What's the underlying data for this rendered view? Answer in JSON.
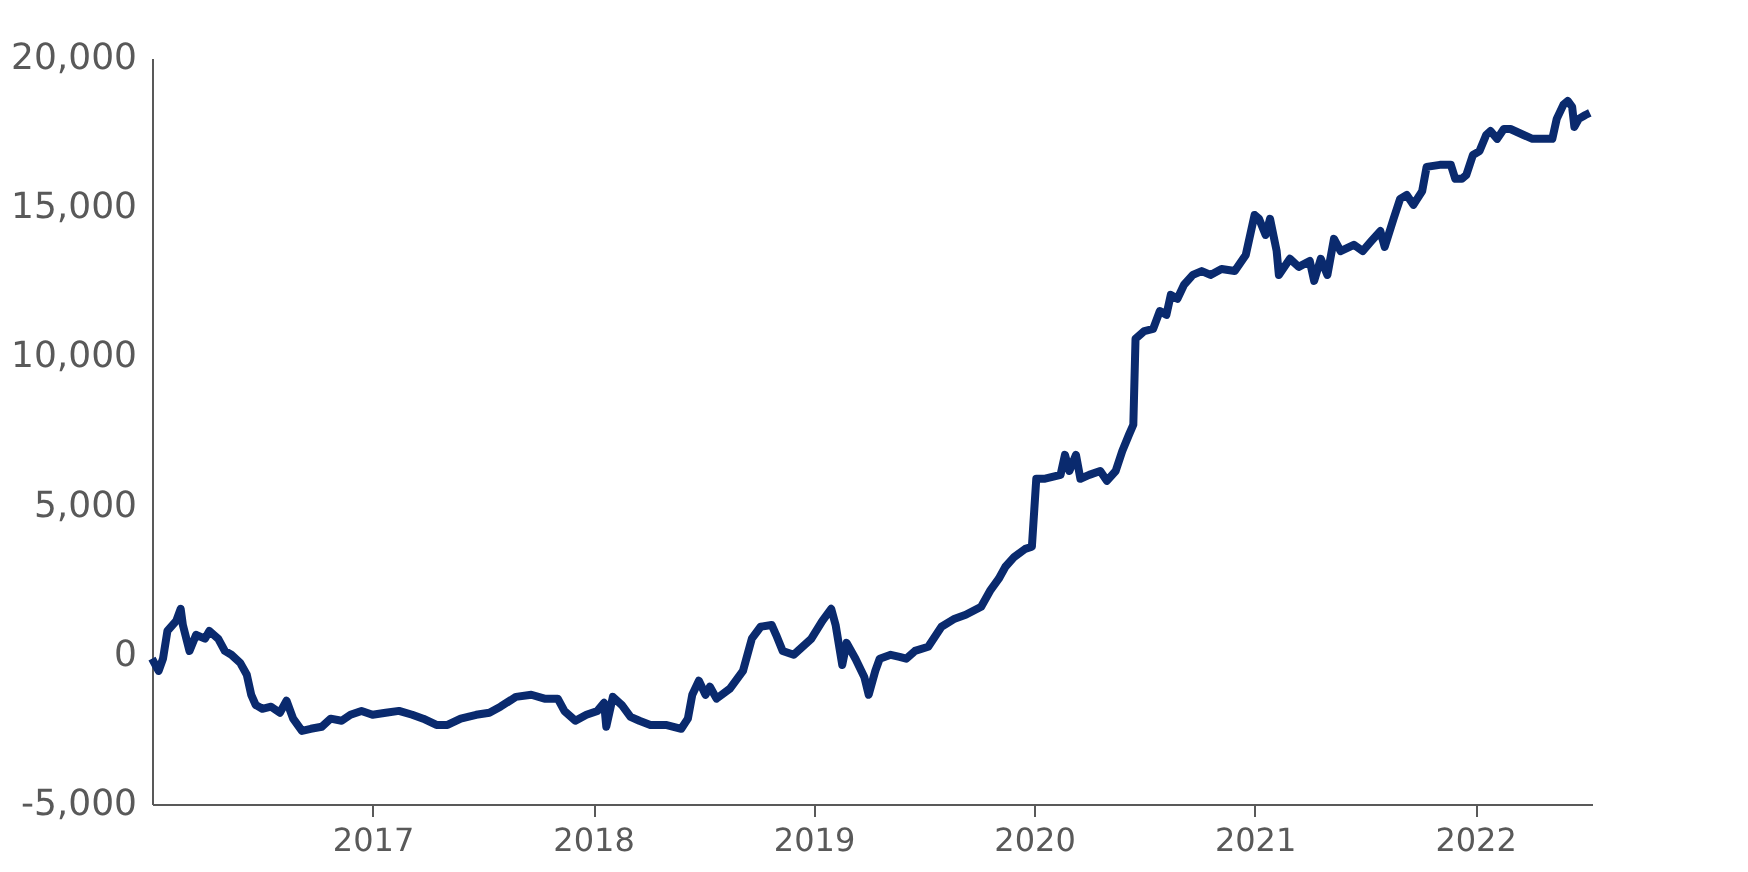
{
  "chart_data": {
    "type": "line",
    "x": [
      2016.0,
      2016.03,
      2016.05,
      2016.07,
      2016.11,
      2016.13,
      2016.14,
      2016.17,
      2016.2,
      2016.24,
      2016.26,
      2016.3,
      2016.33,
      2016.36,
      2016.4,
      2016.43,
      2016.45,
      2016.47,
      2016.5,
      2016.54,
      2016.58,
      2016.61,
      2016.64,
      2016.68,
      2016.72,
      2016.77,
      2016.81,
      2016.86,
      2016.9,
      2016.95,
      2017.0,
      2017.06,
      2017.12,
      2017.18,
      2017.23,
      2017.29,
      2017.34,
      2017.4,
      2017.47,
      2017.53,
      2017.58,
      2017.65,
      2017.72,
      2017.78,
      2017.84,
      2017.87,
      2017.92,
      2017.97,
      2018.02,
      2018.05,
      2018.06,
      2018.09,
      2018.13,
      2018.17,
      2018.21,
      2018.26,
      2018.33,
      2018.4,
      2018.43,
      2018.45,
      2018.48,
      2018.51,
      2018.53,
      2018.56,
      2018.62,
      2018.68,
      2018.72,
      2018.76,
      2018.81,
      2018.83,
      2018.86,
      2018.91,
      2018.95,
      2018.99,
      2019.04,
      2019.08,
      2019.1,
      2019.13,
      2019.15,
      2019.19,
      2019.23,
      2019.25,
      2019.28,
      2019.3,
      2019.35,
      2019.39,
      2019.42,
      2019.46,
      2019.52,
      2019.58,
      2019.64,
      2019.69,
      2019.76,
      2019.8,
      2019.84,
      2019.87,
      2019.91,
      2019.96,
      2019.99,
      2020.01,
      2020.05,
      2020.12,
      2020.14,
      2020.16,
      2020.19,
      2020.21,
      2020.25,
      2020.3,
      2020.33,
      2020.37,
      2020.4,
      2020.43,
      2020.45,
      2020.46,
      2020.5,
      2020.54,
      2020.57,
      2020.6,
      2020.62,
      2020.65,
      2020.68,
      2020.72,
      2020.76,
      2020.8,
      2020.85,
      2020.91,
      2020.96,
      2021.0,
      2021.02,
      2021.05,
      2021.07,
      2021.1,
      2021.11,
      2021.16,
      2021.2,
      2021.25,
      2021.27,
      2021.3,
      2021.33,
      2021.36,
      2021.39,
      2021.45,
      2021.49,
      2021.53,
      2021.57,
      2021.59,
      2021.63,
      2021.66,
      2021.69,
      2021.72,
      2021.76,
      2021.78,
      2021.84,
      2021.89,
      2021.91,
      2021.94,
      2021.96,
      2021.99,
      2022.02,
      2022.05,
      2022.07,
      2022.1,
      2022.13,
      2022.16,
      2022.22,
      2022.26,
      2022.35,
      2022.37,
      2022.4,
      2022.42,
      2022.44,
      2022.45,
      2022.47,
      2022.5,
      2022.52
    ],
    "series": [
      {
        "color": "#0a2a6e",
        "values": [
          -130,
          -540,
          -130,
          800,
          1140,
          1540,
          1000,
          130,
          670,
          540,
          800,
          540,
          130,
          0,
          -270,
          -670,
          -1340,
          -1680,
          -1810,
          -1740,
          -1940,
          -1540,
          -2140,
          -2550,
          -2480,
          -2410,
          -2140,
          -2210,
          -2010,
          -1880,
          -2010,
          -1940,
          -1880,
          -2010,
          -2140,
          -2350,
          -2350,
          -2140,
          -2010,
          -1940,
          -1740,
          -1410,
          -1340,
          -1470,
          -1470,
          -1880,
          -2210,
          -2010,
          -1880,
          -1610,
          -2410,
          -1410,
          -1680,
          -2080,
          -2210,
          -2350,
          -2350,
          -2480,
          -2140,
          -1340,
          -870,
          -1340,
          -1070,
          -1470,
          -1140,
          -540,
          540,
          940,
          1000,
          670,
          130,
          0,
          270,
          540,
          1140,
          1540,
          1000,
          -340,
          400,
          -130,
          -740,
          -1340,
          -540,
          -130,
          0,
          -70,
          -130,
          130,
          270,
          940,
          1210,
          1340,
          1610,
          2140,
          2550,
          2950,
          3280,
          3550,
          3620,
          5900,
          5900,
          6030,
          6700,
          6160,
          6700,
          5900,
          6030,
          6160,
          5830,
          6160,
          6830,
          7370,
          7710,
          10590,
          10850,
          10920,
          11520,
          11390,
          12060,
          11930,
          12400,
          12730,
          12860,
          12730,
          12930,
          12860,
          13400,
          14740,
          14610,
          14070,
          14610,
          13530,
          12730,
          13270,
          13000,
          13200,
          12530,
          13270,
          12730,
          13940,
          13530,
          13740,
          13530,
          13870,
          14200,
          13670,
          14610,
          15280,
          15410,
          15080,
          15540,
          16350,
          16420,
          16420,
          15950,
          15950,
          16080,
          16750,
          16880,
          17420,
          17550,
          17290,
          17620,
          17620,
          17420,
          17290,
          17290,
          17960,
          18430,
          18560,
          18360,
          17690,
          17960,
          18090,
          18160
        ]
      }
    ],
    "xlim": [
      2016.0,
      2022.53
    ],
    "xticks": [
      2017,
      2018,
      2019,
      2020,
      2021,
      2022
    ],
    "ylim": [
      -5000,
      20000
    ],
    "yticks": [
      {
        "value": -5000,
        "label": "-5,000"
      },
      0,
      {
        "value": 5000,
        "label": "5,000"
      },
      {
        "value": 10000,
        "label": "10,000"
      },
      {
        "value": 15000,
        "label": "15,000"
      },
      {
        "value": 20000,
        "label": "20,000"
      }
    ],
    "grid": false,
    "legend": false,
    "marker": "none",
    "line_style": "solid"
  }
}
